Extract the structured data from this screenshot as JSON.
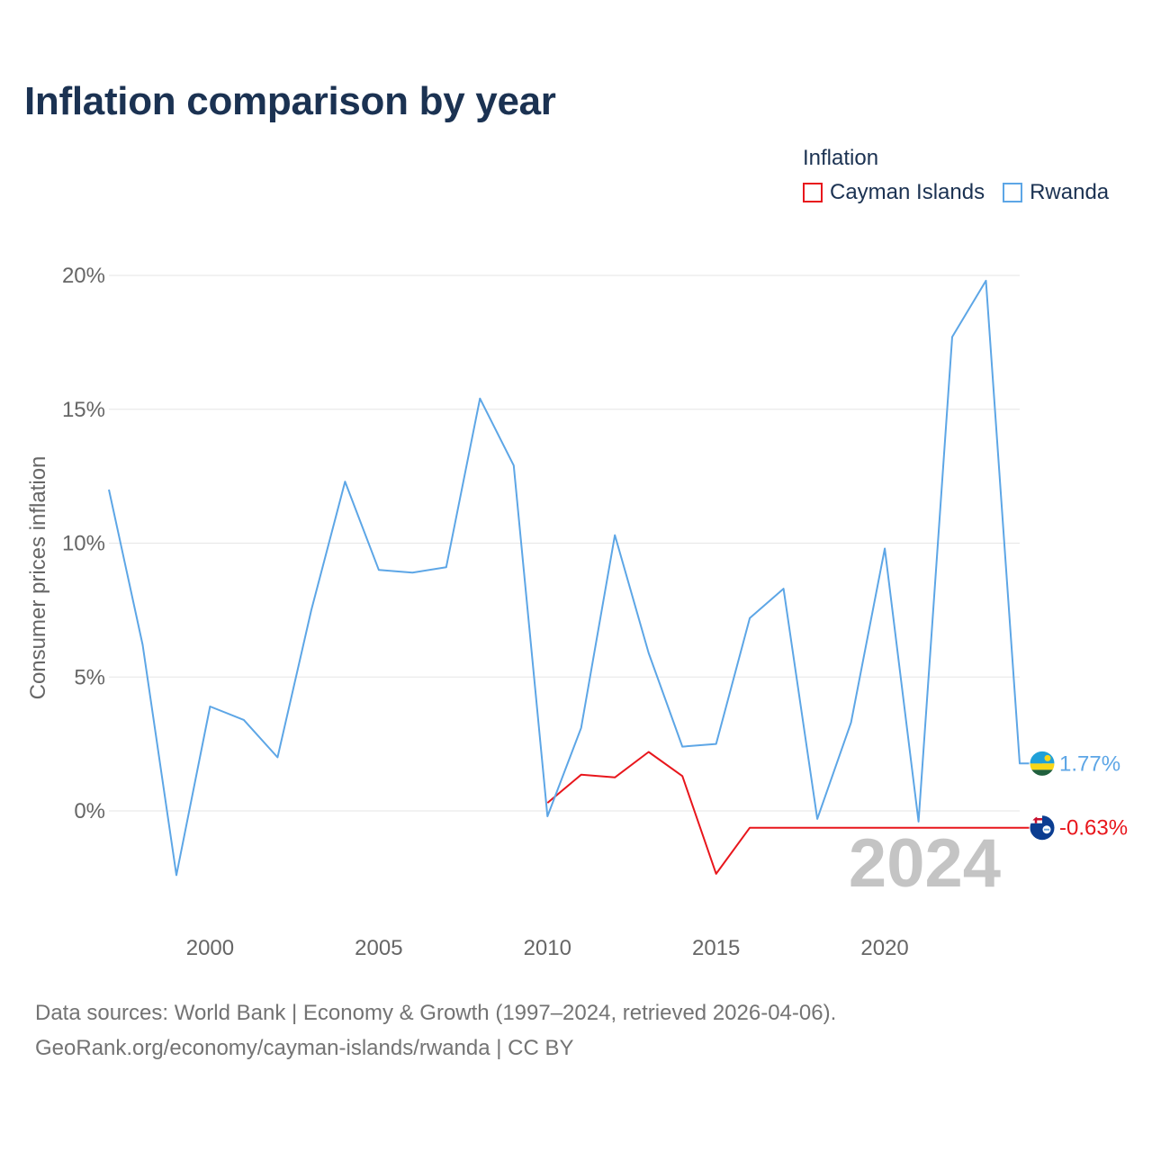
{
  "chart_data": {
    "type": "line",
    "title": "Inflation comparison by year",
    "ylabel": "Consumer prices inflation",
    "xlabel": "",
    "legend_title": "Inflation",
    "legend_position": "top-right",
    "xlim": [
      1997,
      2024
    ],
    "ylim": [
      -3.5,
      21
    ],
    "y_ticks": [
      0,
      5,
      10,
      15,
      20
    ],
    "y_tick_labels": [
      "0%",
      "5%",
      "10%",
      "15%",
      "20%"
    ],
    "x_ticks": [
      2000,
      2005,
      2010,
      2015,
      2020
    ],
    "x_tick_labels": [
      "2000",
      "2005",
      "2010",
      "2015",
      "2020"
    ],
    "year_label": "2024",
    "series": [
      {
        "name": "Cayman Islands",
        "color": "#e8161c",
        "end_label": "-0.63%",
        "flag": "cayman-islands-flag-icon",
        "x": [
          2010,
          2011,
          2012,
          2013,
          2014,
          2015,
          2016,
          2017,
          2018,
          2019,
          2020,
          2021,
          2022,
          2023,
          2024
        ],
        "values": [
          0.3,
          1.35,
          1.25,
          2.2,
          1.3,
          -2.35,
          -0.63,
          -0.63,
          -0.63,
          -0.63,
          -0.63,
          -0.63,
          -0.63,
          -0.63,
          -0.63
        ]
      },
      {
        "name": "Rwanda",
        "color": "#5da6e6",
        "end_label": "1.77%",
        "flag": "rwanda-flag-icon",
        "x": [
          1997,
          1998,
          1999,
          2000,
          2001,
          2002,
          2003,
          2004,
          2005,
          2006,
          2007,
          2008,
          2009,
          2010,
          2011,
          2012,
          2013,
          2014,
          2015,
          2016,
          2017,
          2018,
          2019,
          2020,
          2021,
          2022,
          2023,
          2024
        ],
        "values": [
          12.0,
          6.2,
          -2.4,
          3.9,
          3.4,
          2.0,
          7.5,
          12.3,
          9.0,
          8.9,
          9.1,
          15.4,
          12.9,
          -0.2,
          3.1,
          10.3,
          5.9,
          2.4,
          2.5,
          7.2,
          8.3,
          -0.3,
          3.3,
          9.8,
          -0.4,
          17.7,
          19.8,
          1.77
        ]
      }
    ]
  },
  "footer": {
    "source_line": "Data sources: World Bank | Economy & Growth (1997–2024, retrieved 2026-04-06).",
    "url_line": "GeoRank.org/economy/cayman-islands/rwanda | CC BY"
  }
}
